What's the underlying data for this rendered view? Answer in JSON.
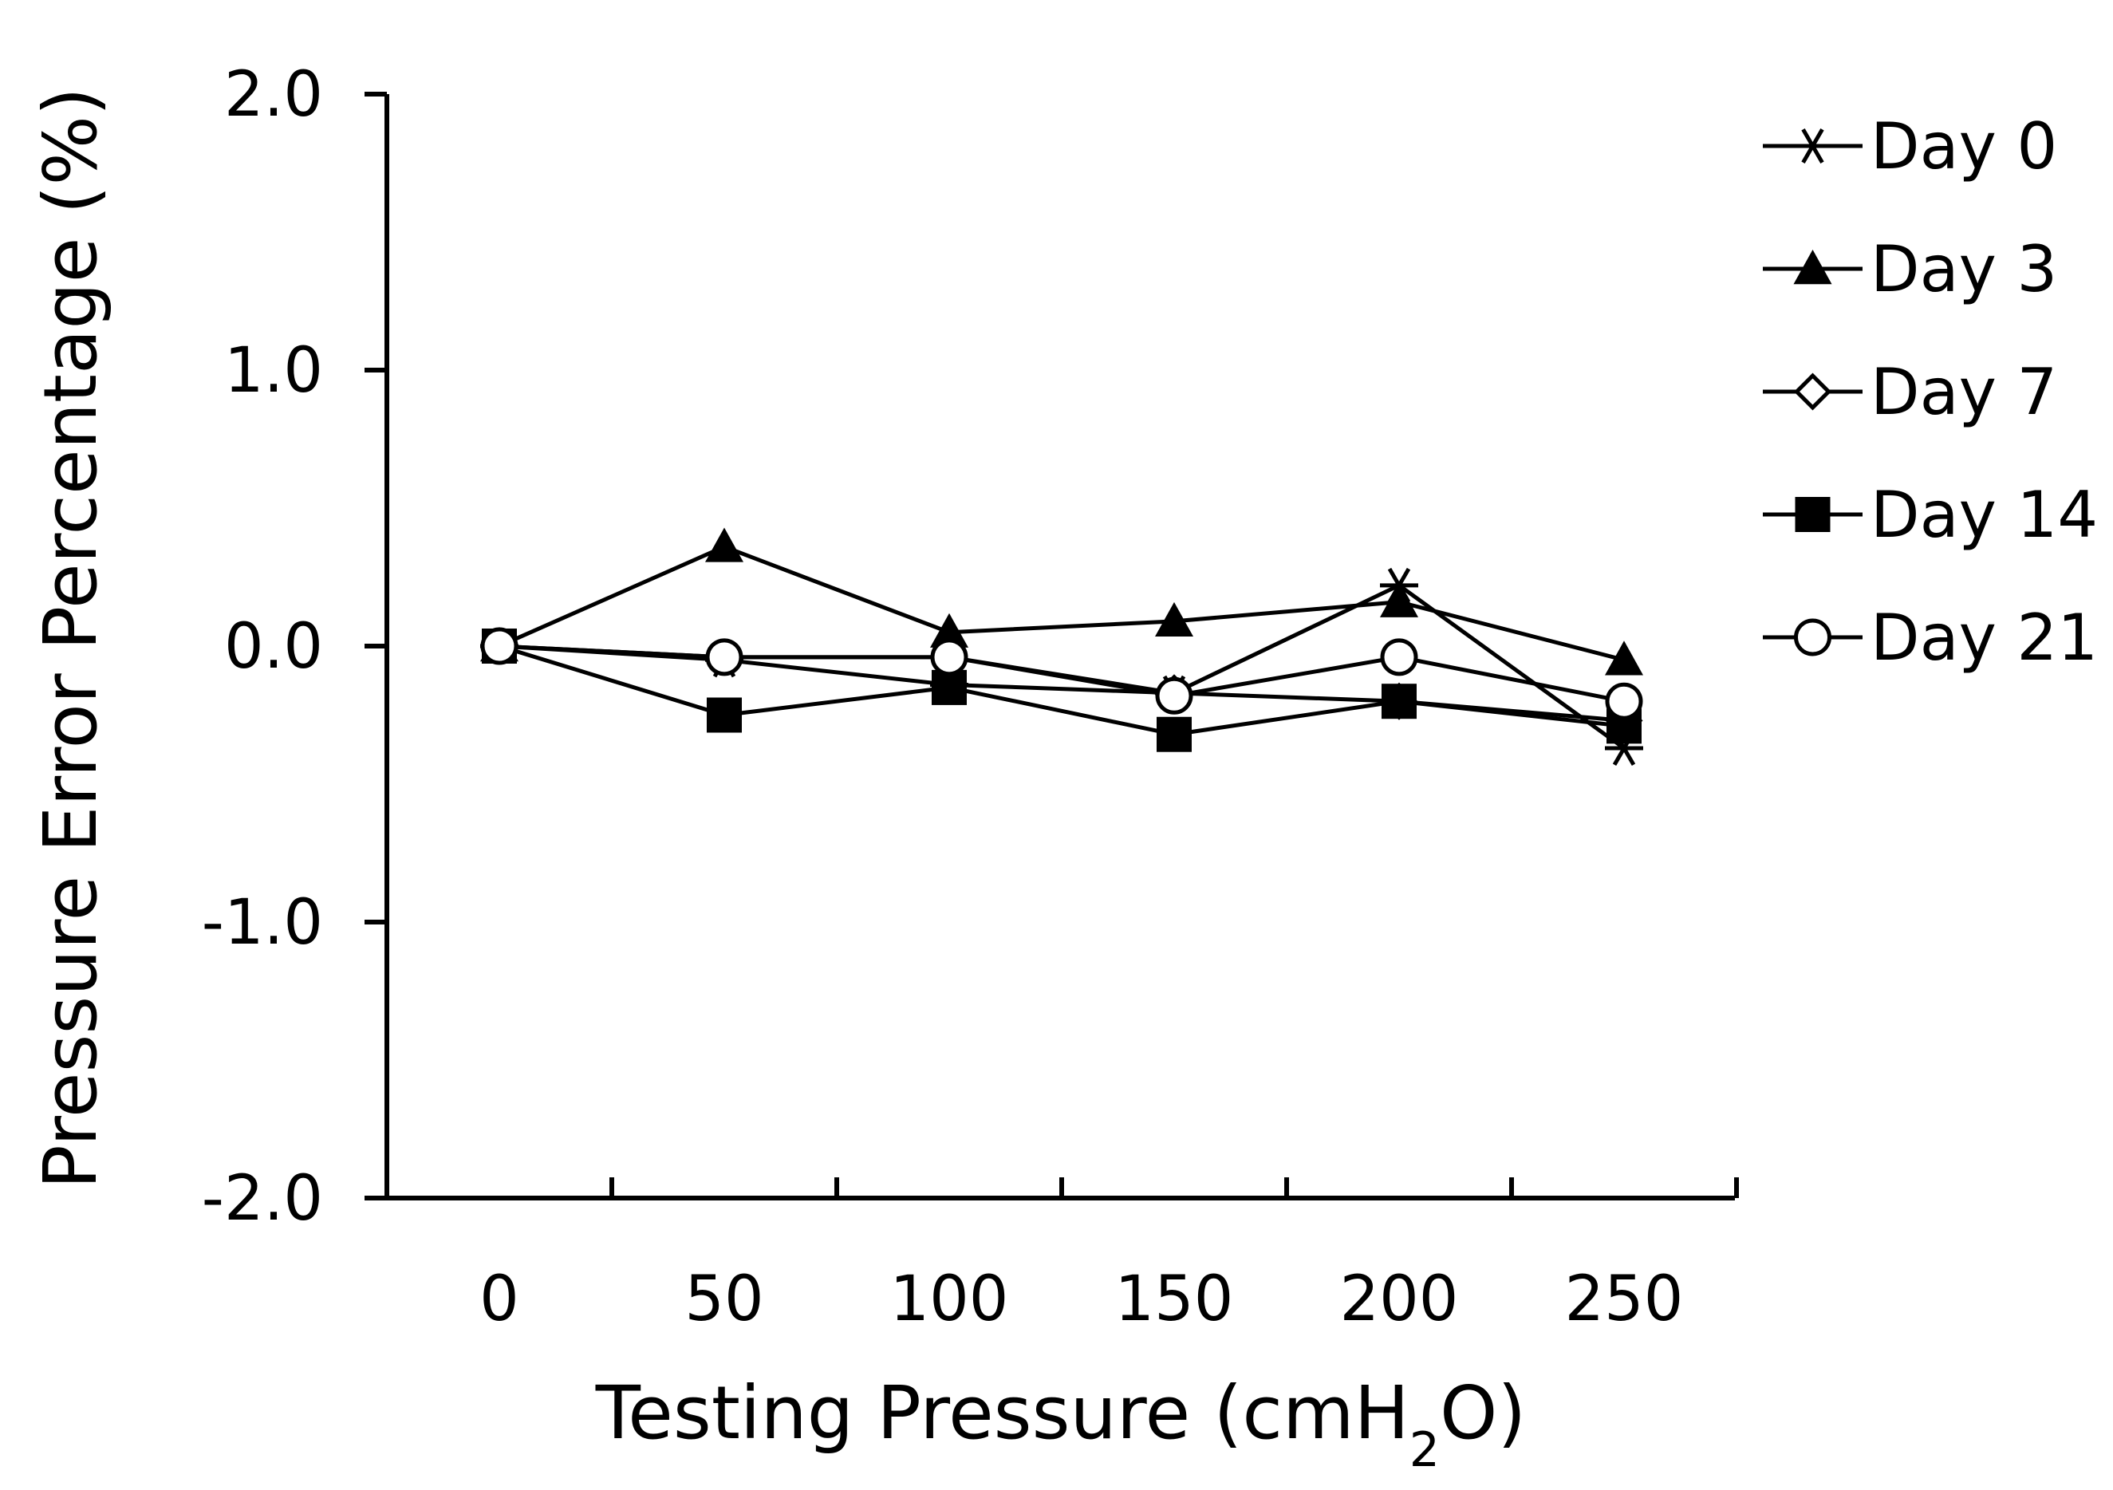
{
  "chart_data": {
    "type": "line",
    "title": "",
    "xlabel": "Testing Pressure (cmH",
    "xlabel_subscript": "2",
    "xlabel_suffix": "O)",
    "ylabel": "Pressure Error Percentage (%)",
    "categories": [
      "0",
      "50",
      "100",
      "150",
      "200",
      "250"
    ],
    "ylim": [
      -2.0,
      2.0
    ],
    "yticks": [
      "2.0",
      "1.0",
      "0.0",
      "-1.0",
      "-2.0"
    ],
    "ytick_values": [
      2.0,
      1.0,
      0.0,
      -1.0,
      -2.0
    ],
    "grid": false,
    "legend_position": "right",
    "series": [
      {
        "name": "Day 0",
        "marker": "asterisk",
        "values": [
          0.0,
          -0.05,
          -0.14,
          -0.17,
          0.22,
          -0.37
        ]
      },
      {
        "name": "Day 3",
        "marker": "filled-triangle",
        "values": [
          0.0,
          0.36,
          0.05,
          0.09,
          0.16,
          -0.05
        ]
      },
      {
        "name": "Day 7",
        "marker": "open-diamond",
        "values": [
          0.0,
          -0.04,
          -0.04,
          -0.17,
          -0.2,
          -0.27
        ]
      },
      {
        "name": "Day 14",
        "marker": "filled-square",
        "values": [
          0.0,
          -0.25,
          -0.15,
          -0.32,
          -0.2,
          -0.29
        ]
      },
      {
        "name": "Day 21",
        "marker": "open-circle",
        "values": [
          0.0,
          -0.04,
          -0.04,
          -0.18,
          -0.04,
          -0.2
        ]
      }
    ],
    "colors": {
      "line": "#000000",
      "background": "#ffffff"
    }
  }
}
